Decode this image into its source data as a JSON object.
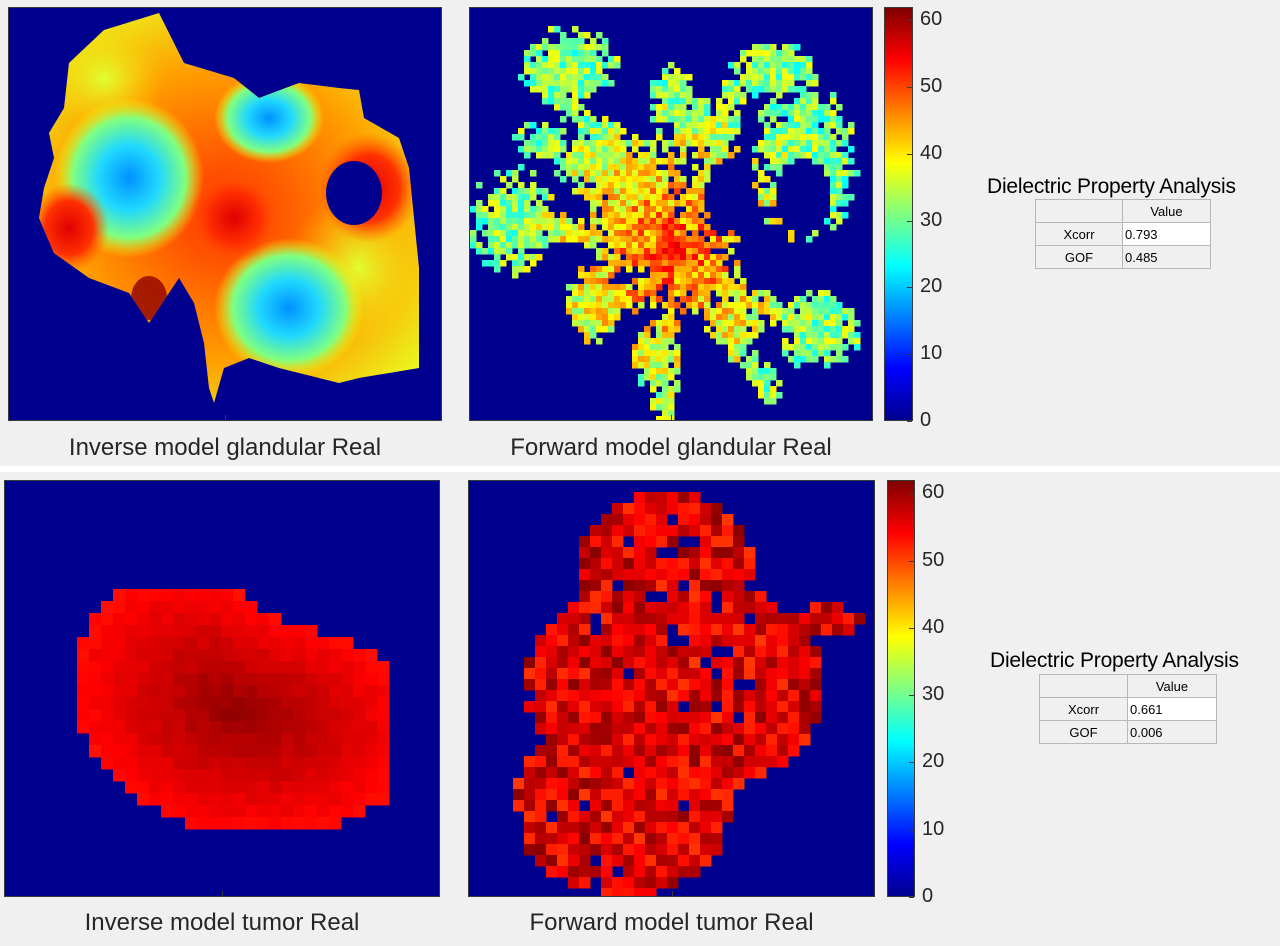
{
  "chart_data": [
    {
      "type": "heatmap",
      "title": "",
      "xlabel": "Inverse model glandular Real",
      "ylabel": "",
      "colormap": "jet",
      "clim": [
        0,
        62
      ],
      "colorbar_ticks": [
        0,
        10,
        20,
        30,
        40,
        50,
        60
      ],
      "grid": false,
      "description_values": "smooth field; blue ~20-25 in lobes, red ~50-60 ridges, background 0"
    },
    {
      "type": "heatmap",
      "title": "",
      "xlabel": "Forward model glandular Real",
      "ylabel": "",
      "colormap": "jet",
      "clim": [
        0,
        62
      ],
      "colorbar_ticks": [
        0,
        10,
        20,
        30,
        40,
        50,
        60
      ],
      "grid": false
    },
    {
      "type": "heatmap",
      "title": "",
      "xlabel": "Inverse model tumor Real",
      "ylabel": "",
      "colormap": "jet",
      "clim": [
        0,
        62
      ],
      "colorbar_ticks": [
        0,
        10,
        20,
        30,
        40,
        50,
        60
      ],
      "grid": false
    },
    {
      "type": "heatmap",
      "title": "",
      "xlabel": "Forward model tumor Real",
      "ylabel": "",
      "colormap": "jet",
      "clim": [
        0,
        62
      ],
      "colorbar_ticks": [
        0,
        10,
        20,
        30,
        40,
        50,
        60
      ],
      "grid": false
    }
  ],
  "colorbar": {
    "ticks": [
      "0",
      "10",
      "20",
      "30",
      "40",
      "50",
      "60"
    ],
    "colors": [
      "#00008f",
      "#0000ff",
      "#0080ff",
      "#00ffff",
      "#80ff80",
      "#ffff00",
      "#ff8000",
      "#ff0000",
      "#800000"
    ]
  },
  "glandular": {
    "inverse_caption": "Inverse model glandular Real",
    "forward_caption": "Forward model glandular Real",
    "analysis": {
      "title": "Dielectric Property Analysis",
      "column_header": "Value",
      "rows": [
        {
          "label": "Xcorr",
          "value": "0.793"
        },
        {
          "label": "GOF",
          "value": "0.485"
        }
      ]
    }
  },
  "tumor": {
    "inverse_caption": "Inverse model tumor Real",
    "forward_caption": "Forward model tumor Real",
    "analysis": {
      "title": "Dielectric Property Analysis",
      "column_header": "Value",
      "rows": [
        {
          "label": "Xcorr",
          "value": "0.661"
        },
        {
          "label": "GOF",
          "value": "0.006"
        }
      ]
    }
  }
}
